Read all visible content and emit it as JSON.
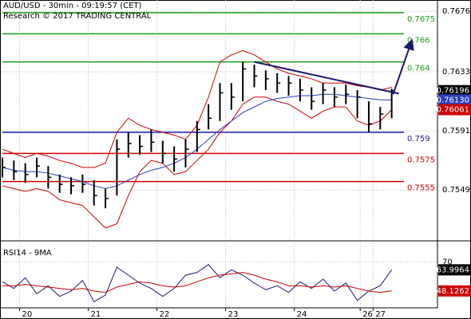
{
  "chart_data": [
    {
      "type": "hlc",
      "title": "AUD/USD - 30min - 09:19:57 (CET)",
      "subtitle": "Research © 2017 TRADING CENTRAL",
      "x": [
        0,
        8,
        16,
        24,
        32,
        40,
        48,
        56,
        64,
        72,
        80,
        88,
        96,
        104,
        112,
        120,
        128,
        136,
        144,
        152,
        160,
        168,
        176,
        184,
        192,
        200,
        208,
        216,
        224,
        232,
        240,
        248,
        256,
        264,
        272
      ],
      "high": [
        0.7572,
        0.757,
        0.7568,
        0.7572,
        0.7566,
        0.756,
        0.7558,
        0.756,
        0.7556,
        0.755,
        0.7585,
        0.759,
        0.7588,
        0.7592,
        0.7584,
        0.758,
        0.7585,
        0.7598,
        0.761,
        0.7625,
        0.7625,
        0.764,
        0.7638,
        0.7634,
        0.7632,
        0.763,
        0.7628,
        0.7622,
        0.7625,
        0.7622,
        0.7624,
        0.762,
        0.7612,
        0.7608,
        0.7621
      ],
      "low": [
        0.7558,
        0.7556,
        0.7554,
        0.7558,
        0.755,
        0.7547,
        0.7546,
        0.7547,
        0.7538,
        0.7536,
        0.7545,
        0.7572,
        0.7574,
        0.7576,
        0.7568,
        0.7562,
        0.7565,
        0.7576,
        0.7592,
        0.7598,
        0.7606,
        0.7612,
        0.7622,
        0.762,
        0.7618,
        0.7616,
        0.7612,
        0.7606,
        0.761,
        0.7608,
        0.761,
        0.76,
        0.759,
        0.7592,
        0.76
      ],
      "close": [
        0.7565,
        0.7562,
        0.756,
        0.7566,
        0.7558,
        0.7553,
        0.7552,
        0.7553,
        0.7545,
        0.7543,
        0.7578,
        0.7582,
        0.758,
        0.7583,
        0.7575,
        0.7571,
        0.7578,
        0.7592,
        0.76,
        0.7618,
        0.7615,
        0.7635,
        0.763,
        0.7628,
        0.7625,
        0.7625,
        0.762,
        0.7612,
        0.762,
        0.7615,
        0.7617,
        0.7615,
        0.7596,
        0.7603,
        0.76196
      ],
      "color": "#000000",
      "bands": {
        "color": "#cc0000",
        "upper": [
          0.7578,
          0.7575,
          0.7572,
          0.7575,
          0.7573,
          0.757,
          0.7568,
          0.7565,
          0.7565,
          0.7568,
          0.759,
          0.76,
          0.7595,
          0.7592,
          0.759,
          0.7588,
          0.7585,
          0.7595,
          0.7615,
          0.764,
          0.7645,
          0.7648,
          0.7645,
          0.764,
          0.7635,
          0.7632,
          0.763,
          0.7628,
          0.7625,
          0.7625,
          0.7625,
          0.7623,
          0.7622,
          0.762,
          0.7622
        ],
        "lower": [
          0.7552,
          0.755,
          0.7548,
          0.755,
          0.7548,
          0.7542,
          0.754,
          0.7538,
          0.753,
          0.7522,
          0.7525,
          0.7545,
          0.7562,
          0.757,
          0.7568,
          0.756,
          0.7562,
          0.757,
          0.7578,
          0.759,
          0.7598,
          0.761,
          0.7615,
          0.7615,
          0.7612,
          0.761,
          0.7605,
          0.76,
          0.7605,
          0.7608,
          0.7608,
          0.7598,
          0.7595,
          0.7598,
          0.76061
        ]
      },
      "ma": {
        "color": "#2a3fbf",
        "last_label": "0.76130",
        "values": [
          0.7565,
          0.7563,
          0.7562,
          0.7562,
          0.7561,
          0.7559,
          0.7557,
          0.7555,
          0.7552,
          0.755,
          0.7552,
          0.7556,
          0.756,
          0.7563,
          0.7565,
          0.7568,
          0.7572,
          0.7578,
          0.7585,
          0.7592,
          0.7598,
          0.7604,
          0.7608,
          0.7612,
          0.7614,
          0.7615,
          0.7616,
          0.7616,
          0.7617,
          0.7617,
          0.7616,
          0.7615,
          0.7614,
          0.7613,
          0.7613
        ]
      },
      "levels": {
        "values": [
          0.7675,
          0.766,
          0.764,
          0.759,
          0.7575,
          0.7555
        ],
        "colors": [
          "#1a9a1a",
          "#1a9a1a",
          "#1a9a1a",
          "#1a1aa0",
          "#d00000",
          "#d00000"
        ]
      },
      "trendline": {
        "x": [
          176,
          277
        ],
        "y": [
          0.764,
          0.76175
        ],
        "color": "#1a1a70"
      },
      "arrow": {
        "x": [
          273,
          286
        ],
        "y": [
          0.7617,
          0.7655
        ]
      },
      "xlim": [
        0,
        304
      ],
      "ylim": [
        0.7514,
        0.7684
      ],
      "yticks": [
        0.7676,
        0.7633,
        0.7591,
        0.7549
      ],
      "grid": true
    },
    {
      "type": "line",
      "title": "RSI14 - 9MA",
      "x": [
        0,
        8,
        16,
        24,
        32,
        40,
        48,
        56,
        64,
        72,
        80,
        88,
        96,
        104,
        112,
        120,
        128,
        136,
        144,
        152,
        160,
        168,
        176,
        184,
        192,
        200,
        208,
        216,
        224,
        232,
        240,
        248,
        256,
        264,
        272
      ],
      "series": [
        {
          "color": "#1a1a70",
          "box": "#000000",
          "values": [
            55,
            50,
            58,
            46,
            52,
            44,
            48,
            56,
            40,
            45,
            66,
            60,
            54,
            50,
            44,
            50,
            60,
            62,
            68,
            58,
            64,
            60,
            54,
            49,
            52,
            47,
            55,
            50,
            57,
            48,
            54,
            41,
            48,
            52,
            63.9964
          ]
        },
        {
          "color": "#cc0000",
          "box": "#cc0000",
          "values": [
            52,
            52,
            53,
            52,
            51,
            50,
            49,
            50,
            48,
            47,
            51,
            53,
            55,
            54,
            52,
            51,
            52,
            55,
            58,
            60,
            61,
            62,
            60,
            57,
            55,
            52,
            52,
            51,
            52,
            51,
            52,
            50,
            48,
            47,
            48.1262
          ]
        }
      ],
      "xlim": [
        0,
        304
      ],
      "ylim": [
        36,
        84
      ],
      "yticks": [
        70
      ],
      "xticks": [
        {
          "value": 12,
          "label": "20"
        },
        {
          "value": 60,
          "label": "21"
        },
        {
          "value": 108,
          "label": "22"
        },
        {
          "value": 156,
          "label": "23"
        },
        {
          "value": 204,
          "label": "24"
        },
        {
          "value": 250,
          "label": "26"
        },
        {
          "value": 259,
          "label": "27"
        }
      ],
      "grid": true
    }
  ]
}
